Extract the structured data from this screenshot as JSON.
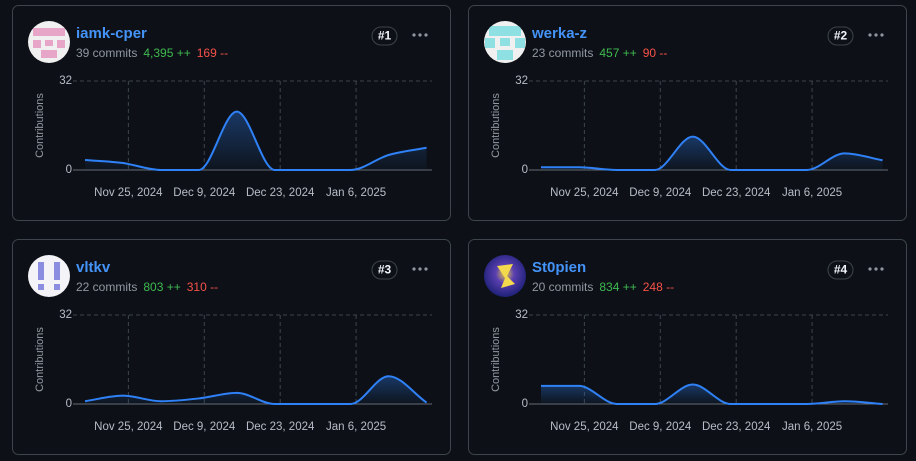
{
  "chart_data": [
    {
      "type": "area",
      "user": "iamk-cper",
      "commits": "39 commits",
      "additions": "4,395 ++",
      "deletions": "169 --",
      "rank": "#1",
      "ylabel": "Contributions",
      "color": "#2f81f7",
      "x": [
        "2024-11-17",
        "2024-11-24",
        "2024-12-01",
        "2024-12-08",
        "2024-12-15",
        "2024-12-22",
        "2024-12-29",
        "2025-01-05",
        "2025-01-12",
        "2025-01-19"
      ],
      "values": [
        3.6,
        2.5,
        0,
        0,
        21,
        0,
        0,
        0,
        5.4,
        8
      ],
      "xlim": [
        "2024-11-17",
        "2025-01-20"
      ],
      "ylim": [
        0,
        32
      ],
      "yticks": [
        0,
        32
      ],
      "xticks": [
        {
          "value": "2024-11-25",
          "label": "Nov 25, 2024"
        },
        {
          "value": "2024-12-09",
          "label": "Dec 9, 2024"
        },
        {
          "value": "2024-12-23",
          "label": "Dec 23, 2024"
        },
        {
          "value": "2025-01-06",
          "label": "Jan 6, 2025"
        }
      ],
      "grid": true
    },
    {
      "type": "area",
      "user": "werka-z",
      "commits": "23 commits",
      "additions": "457 ++",
      "deletions": "90 --",
      "rank": "#2",
      "ylabel": "Contributions",
      "color": "#2f81f7",
      "x": [
        "2024-11-17",
        "2024-11-24",
        "2024-12-01",
        "2024-12-08",
        "2024-12-15",
        "2024-12-22",
        "2024-12-29",
        "2025-01-05",
        "2025-01-12",
        "2025-01-19"
      ],
      "values": [
        1,
        1,
        0,
        0,
        12,
        0,
        0,
        0,
        6,
        3.5
      ],
      "xlim": [
        "2024-11-17",
        "2025-01-20"
      ],
      "ylim": [
        0,
        32
      ],
      "yticks": [
        0,
        32
      ],
      "xticks": [
        {
          "value": "2024-11-25",
          "label": "Nov 25, 2024"
        },
        {
          "value": "2024-12-09",
          "label": "Dec 9, 2024"
        },
        {
          "value": "2024-12-23",
          "label": "Dec 23, 2024"
        },
        {
          "value": "2025-01-06",
          "label": "Jan 6, 2025"
        }
      ],
      "grid": true
    },
    {
      "type": "area",
      "user": "vltkv",
      "commits": "22 commits",
      "additions": "803 ++",
      "deletions": "310 --",
      "rank": "#3",
      "ylabel": "Contributions",
      "color": "#2f81f7",
      "x": [
        "2024-11-17",
        "2024-11-24",
        "2024-12-01",
        "2024-12-08",
        "2024-12-15",
        "2024-12-22",
        "2024-12-29",
        "2025-01-05",
        "2025-01-12",
        "2025-01-19"
      ],
      "values": [
        1,
        3,
        1,
        2,
        4,
        0,
        0,
        0,
        10,
        0.5
      ],
      "xlim": [
        "2024-11-17",
        "2025-01-20"
      ],
      "ylim": [
        0,
        32
      ],
      "yticks": [
        0,
        32
      ],
      "xticks": [
        {
          "value": "2024-11-25",
          "label": "Nov 25, 2024"
        },
        {
          "value": "2024-12-09",
          "label": "Dec 9, 2024"
        },
        {
          "value": "2024-12-23",
          "label": "Dec 23, 2024"
        },
        {
          "value": "2025-01-06",
          "label": "Jan 6, 2025"
        }
      ],
      "grid": true
    },
    {
      "type": "area",
      "user": "St0pien",
      "commits": "20 commits",
      "additions": "834 ++",
      "deletions": "248 --",
      "rank": "#4",
      "ylabel": "Contributions",
      "color": "#2f81f7",
      "x": [
        "2024-11-17",
        "2024-11-24",
        "2024-12-01",
        "2024-12-08",
        "2024-12-15",
        "2024-12-22",
        "2024-12-29",
        "2025-01-05",
        "2025-01-12",
        "2025-01-19"
      ],
      "values": [
        6.5,
        6.5,
        0,
        0,
        7,
        0,
        0,
        0,
        1,
        0
      ],
      "xlim": [
        "2024-11-17",
        "2025-01-20"
      ],
      "ylim": [
        0,
        32
      ],
      "yticks": [
        0,
        32
      ],
      "xticks": [
        {
          "value": "2024-11-25",
          "label": "Nov 25, 2024"
        },
        {
          "value": "2024-12-09",
          "label": "Dec 9, 2024"
        },
        {
          "value": "2024-12-23",
          "label": "Dec 23, 2024"
        },
        {
          "value": "2025-01-06",
          "label": "Jan 6, 2025"
        }
      ],
      "grid": true
    }
  ]
}
